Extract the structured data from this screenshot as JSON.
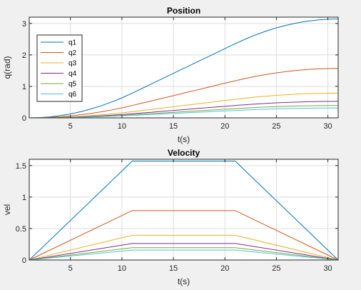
{
  "chart_data": [
    {
      "type": "line",
      "title": "Position",
      "xlabel": "t(s)",
      "ylabel": "q(rad)",
      "xlim": [
        1,
        31
      ],
      "ylim": [
        0,
        3.2
      ],
      "xticks": [
        5,
        10,
        15,
        20,
        25,
        30
      ],
      "yticks": [
        0,
        1,
        2,
        3
      ],
      "grid": true,
      "legend_position": "top-left",
      "x": [
        1,
        2,
        3,
        4,
        5,
        6,
        7,
        8,
        9,
        10,
        11,
        12,
        13,
        14,
        15,
        16,
        17,
        18,
        19,
        20,
        21,
        22,
        23,
        24,
        25,
        26,
        27,
        28,
        29,
        30,
        31
      ],
      "series": [
        {
          "name": "q1",
          "color": "#0072BD",
          "values": [
            0,
            0.008,
            0.031,
            0.071,
            0.126,
            0.196,
            0.283,
            0.385,
            0.503,
            0.636,
            0.785,
            0.942,
            1.1,
            1.257,
            1.414,
            1.571,
            1.728,
            1.885,
            2.042,
            2.199,
            2.356,
            2.505,
            2.639,
            2.757,
            2.859,
            2.945,
            3.016,
            3.071,
            3.11,
            3.134,
            3.142
          ]
        },
        {
          "name": "q2",
          "color": "#D95319",
          "values": [
            0,
            0.004,
            0.016,
            0.035,
            0.063,
            0.098,
            0.141,
            0.192,
            0.251,
            0.318,
            0.393,
            0.471,
            0.55,
            0.628,
            0.707,
            0.785,
            0.864,
            0.942,
            1.021,
            1.1,
            1.178,
            1.253,
            1.319,
            1.378,
            1.429,
            1.473,
            1.508,
            1.535,
            1.555,
            1.567,
            1.571
          ]
        },
        {
          "name": "q3",
          "color": "#EDB120",
          "values": [
            0,
            0.002,
            0.008,
            0.018,
            0.031,
            0.049,
            0.071,
            0.096,
            0.126,
            0.159,
            0.196,
            0.236,
            0.275,
            0.314,
            0.353,
            0.393,
            0.432,
            0.471,
            0.511,
            0.55,
            0.589,
            0.626,
            0.66,
            0.689,
            0.715,
            0.736,
            0.754,
            0.768,
            0.778,
            0.783,
            0.785
          ]
        },
        {
          "name": "q4",
          "color": "#7E2F8E",
          "values": [
            0,
            0.001,
            0.005,
            0.012,
            0.021,
            0.033,
            0.047,
            0.064,
            0.084,
            0.106,
            0.131,
            0.157,
            0.183,
            0.209,
            0.236,
            0.262,
            0.288,
            0.314,
            0.34,
            0.367,
            0.393,
            0.418,
            0.44,
            0.46,
            0.476,
            0.491,
            0.503,
            0.512,
            0.518,
            0.522,
            0.524
          ]
        },
        {
          "name": "q5",
          "color": "#77AC30",
          "values": [
            0,
            0.001,
            0.004,
            0.009,
            0.016,
            0.025,
            0.035,
            0.048,
            0.063,
            0.08,
            0.098,
            0.118,
            0.137,
            0.157,
            0.177,
            0.196,
            0.216,
            0.236,
            0.255,
            0.275,
            0.295,
            0.313,
            0.33,
            0.345,
            0.357,
            0.368,
            0.377,
            0.384,
            0.389,
            0.392,
            0.393
          ]
        },
        {
          "name": "q6",
          "color": "#4DBEEE",
          "values": [
            0,
            0.001,
            0.003,
            0.007,
            0.013,
            0.02,
            0.028,
            0.039,
            0.05,
            0.064,
            0.079,
            0.094,
            0.11,
            0.126,
            0.141,
            0.157,
            0.173,
            0.188,
            0.204,
            0.22,
            0.236,
            0.251,
            0.264,
            0.276,
            0.286,
            0.295,
            0.302,
            0.307,
            0.311,
            0.313,
            0.314
          ]
        }
      ]
    },
    {
      "type": "line",
      "title": "Velocity",
      "xlabel": "t(s)",
      "ylabel": "vel",
      "xlim": [
        1,
        31
      ],
      "ylim": [
        0,
        1.6
      ],
      "xticks": [
        5,
        10,
        15,
        20,
        25,
        30
      ],
      "yticks": [
        0,
        0.5,
        1,
        1.5
      ],
      "grid": true,
      "x": [
        1,
        11,
        21,
        31
      ],
      "series": [
        {
          "color": "#0072BD",
          "values": [
            0,
            1.571,
            1.571,
            0
          ]
        },
        {
          "color": "#D95319",
          "values": [
            0,
            0.785,
            0.785,
            0
          ]
        },
        {
          "color": "#EDB120",
          "values": [
            0,
            0.393,
            0.393,
            0
          ]
        },
        {
          "color": "#7E2F8E",
          "values": [
            0,
            0.262,
            0.262,
            0
          ]
        },
        {
          "color": "#77AC30",
          "values": [
            0,
            0.196,
            0.196,
            0
          ]
        },
        {
          "color": "#4DBEEE",
          "values": [
            0,
            0.157,
            0.157,
            0
          ]
        }
      ]
    }
  ]
}
